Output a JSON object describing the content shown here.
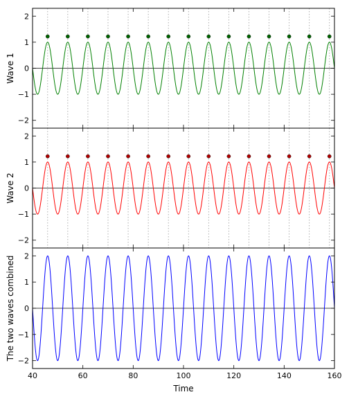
{
  "chart_data": [
    {
      "type": "line",
      "panel": "top",
      "ylabel": "Wave 1",
      "xlim": [
        40,
        160
      ],
      "ylim": [
        -2.3,
        2.3
      ],
      "yticks": [
        -2,
        -1,
        0,
        1,
        2
      ],
      "yticklabels": [
        "−2",
        "−1",
        "0",
        "1",
        "2"
      ],
      "grid_x": [
        46,
        54,
        62,
        70,
        78,
        86,
        94,
        102,
        110,
        118,
        126,
        134,
        142,
        150,
        158
      ],
      "zero_line": true,
      "series": [
        {
          "kind": "sine",
          "amplitude": 1,
          "period": 8,
          "phase_x": 40,
          "sign": -1,
          "color": "#008000"
        },
        {
          "kind": "markers",
          "x": [
            46,
            54,
            62,
            70,
            78,
            86,
            94,
            102,
            110,
            118,
            126,
            134,
            142,
            150,
            158
          ],
          "y": 1.22,
          "color": "#006400"
        }
      ]
    },
    {
      "type": "line",
      "panel": "middle",
      "ylabel": "Wave 2",
      "xlim": [
        40,
        160
      ],
      "ylim": [
        -2.3,
        2.3
      ],
      "yticks": [
        -2,
        -1,
        0,
        1,
        2
      ],
      "yticklabels": [
        "−2",
        "−1",
        "0",
        "1",
        "2"
      ],
      "grid_x": [
        46,
        54,
        62,
        70,
        78,
        86,
        94,
        102,
        110,
        118,
        126,
        134,
        142,
        150,
        158
      ],
      "zero_line": true,
      "series": [
        {
          "kind": "sine",
          "amplitude": 1,
          "period": 8,
          "phase_x": 40,
          "sign": -1,
          "color": "#ff0000"
        },
        {
          "kind": "markers",
          "x": [
            46,
            54,
            62,
            70,
            78,
            86,
            94,
            102,
            110,
            118,
            126,
            134,
            142,
            150,
            158
          ],
          "y": 1.22,
          "color": "#b00000"
        }
      ]
    },
    {
      "type": "line",
      "panel": "bottom",
      "ylabel": "The two waves combined",
      "xlabel": "Time",
      "xlim": [
        40,
        160
      ],
      "xticks": [
        40,
        60,
        80,
        100,
        120,
        140,
        160
      ],
      "xticklabels": [
        "40",
        "60",
        "80",
        "100",
        "120",
        "140",
        "160"
      ],
      "ylim": [
        -2.3,
        2.3
      ],
      "yticks": [
        -2,
        -1,
        0,
        1,
        2
      ],
      "yticklabels": [
        "−2",
        "−1",
        "0",
        "1",
        "2"
      ],
      "zero_line": true,
      "series": [
        {
          "kind": "sine",
          "amplitude": 2,
          "period": 8,
          "phase_x": 40,
          "sign": -1,
          "color": "#0000ff"
        }
      ]
    }
  ]
}
